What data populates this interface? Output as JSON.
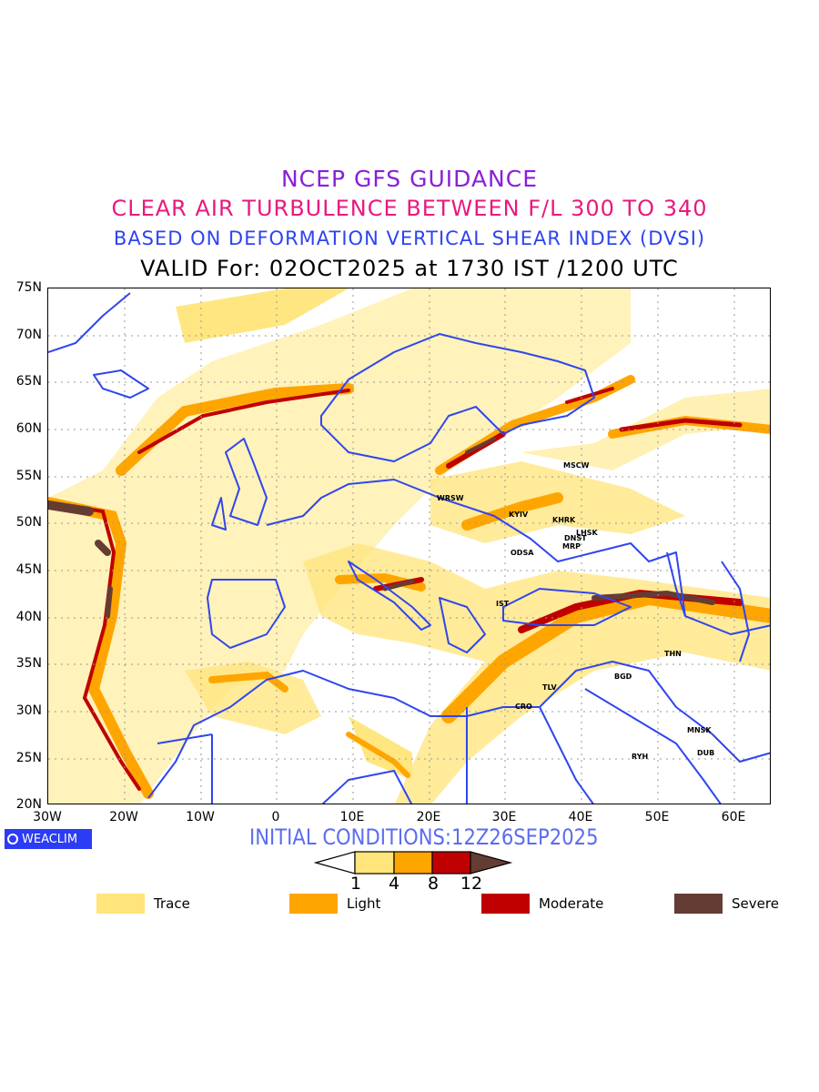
{
  "header": {
    "line1": "NCEP GFS GUIDANCE",
    "line2": "CLEAR AIR TURBULENCE BETWEEN F/L 300 TO 340",
    "line3": "BASED ON DEFORMATION VERTICAL SHEAR INDEX (DVSI)",
    "line4": "VALID For: 02OCT2025 at 1730 IST /1200 UTC"
  },
  "map": {
    "lat_labels": [
      "75N",
      "70N",
      "65N",
      "60N",
      "55N",
      "50N",
      "45N",
      "40N",
      "35N",
      "30N",
      "25N",
      "20N"
    ],
    "lon_labels": [
      "30W",
      "20W",
      "10W",
      "0",
      "10E",
      "20E",
      "30E",
      "40E",
      "50E",
      "60E"
    ],
    "lon_range": [
      -30,
      65
    ],
    "lat_range": [
      20,
      75
    ],
    "cities": [
      "MSCW",
      "WRSW",
      "KYIV",
      "KHRK",
      "LHSK",
      "DNST",
      "MRP",
      "ODSA",
      "IST",
      "THN",
      "BGD",
      "TLV",
      "CRO",
      "MNSK",
      "RYH",
      "DUB"
    ]
  },
  "footer": {
    "logo": "WEACLIM",
    "initial_conditions": "INITIAL CONDITIONS:12Z26SEP2025"
  },
  "colorbar": {
    "ticks": [
      "1",
      "4",
      "8",
      "12"
    ],
    "colors": {
      "trace": "#FFE57A",
      "light": "#FFA500",
      "moderate": "#C00000",
      "severe": "#653C33"
    }
  },
  "legend": [
    {
      "label": "Trace",
      "color": "#FFE57A"
    },
    {
      "label": "Light",
      "color": "#FFA500"
    },
    {
      "label": "Moderate",
      "color": "#C00000"
    },
    {
      "label": "Severe",
      "color": "#653C33"
    }
  ]
}
